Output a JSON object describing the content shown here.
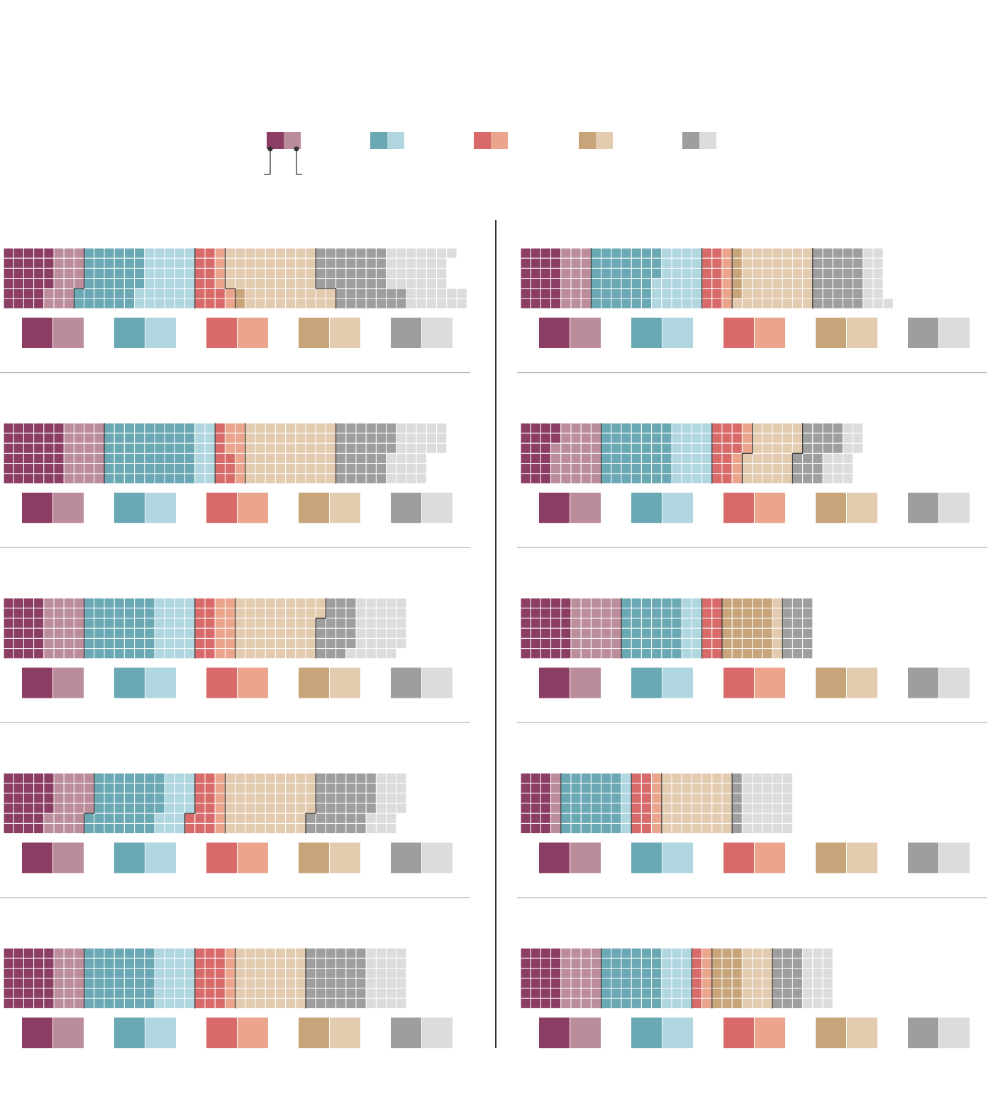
{
  "colors": {
    "cat1": [
      "#8b3d63",
      "#bb8c9a"
    ],
    "cat2": [
      "#6aa8b4",
      "#b0d6df"
    ],
    "cat3": [
      "#d86a6a",
      "#eaa58c"
    ],
    "cat4": [
      "#c8a47a",
      "#e3cbb0"
    ],
    "cat5": [
      "#9e9e9e",
      "#dcdcdc"
    ],
    "grid_line": "#ffffff",
    "divider": "#b4b4b4",
    "separator": "#333333"
  },
  "chart_data": {
    "type": "waffle",
    "rows_per_panel": 6,
    "categories": [
      "cat1",
      "cat2",
      "cat3",
      "cat4",
      "cat5"
    ],
    "panels": [
      {
        "column": "left",
        "row": 1,
        "rows": [
          [
            5,
            3,
            6,
            5,
            2,
            1,
            0,
            9,
            7,
            7
          ],
          [
            5,
            3,
            6,
            5,
            2,
            1,
            0,
            9,
            7,
            6
          ],
          [
            5,
            3,
            6,
            5,
            2,
            1,
            0,
            9,
            7,
            6
          ],
          [
            5,
            3,
            6,
            5,
            2,
            1,
            0,
            9,
            7,
            6
          ],
          [
            4,
            3,
            6,
            6,
            3,
            1,
            1,
            9,
            7,
            6
          ],
          [
            4,
            3,
            6,
            6,
            3,
            1,
            1,
            9,
            7,
            6
          ]
        ]
      },
      {
        "column": "right",
        "row": 1,
        "rows": [
          [
            4,
            3,
            7,
            4,
            2,
            1,
            1,
            7,
            5,
            2
          ],
          [
            4,
            3,
            7,
            4,
            2,
            1,
            1,
            7,
            5,
            2
          ],
          [
            4,
            3,
            7,
            4,
            2,
            1,
            1,
            7,
            5,
            2
          ],
          [
            4,
            3,
            6,
            5,
            2,
            1,
            1,
            7,
            5,
            2
          ],
          [
            4,
            3,
            6,
            5,
            2,
            1,
            1,
            7,
            5,
            2
          ],
          [
            4,
            3,
            6,
            5,
            2,
            1,
            0,
            8,
            5,
            3
          ]
        ]
      },
      {
        "column": "left",
        "row": 2,
        "rows": [
          [
            6,
            4,
            9,
            2,
            1,
            2,
            0,
            9,
            6,
            5
          ],
          [
            6,
            4,
            9,
            2,
            1,
            2,
            0,
            9,
            6,
            5
          ],
          [
            6,
            4,
            9,
            2,
            1,
            2,
            0,
            9,
            6,
            5
          ],
          [
            6,
            4,
            9,
            2,
            2,
            1,
            0,
            9,
            5,
            4
          ],
          [
            6,
            4,
            9,
            2,
            2,
            1,
            0,
            9,
            5,
            4
          ],
          [
            6,
            4,
            9,
            2,
            2,
            1,
            0,
            9,
            5,
            4
          ]
        ]
      },
      {
        "column": "right",
        "row": 2,
        "rows": [
          [
            4,
            4,
            7,
            4,
            3,
            1,
            0,
            5,
            4,
            2
          ],
          [
            4,
            4,
            7,
            4,
            3,
            1,
            0,
            5,
            4,
            2
          ],
          [
            3,
            5,
            7,
            4,
            3,
            1,
            0,
            5,
            4,
            2
          ],
          [
            3,
            5,
            7,
            4,
            2,
            1,
            0,
            5,
            3,
            3
          ],
          [
            3,
            5,
            7,
            4,
            2,
            1,
            0,
            5,
            3,
            3
          ],
          [
            3,
            5,
            7,
            4,
            2,
            1,
            0,
            5,
            3,
            3
          ]
        ]
      },
      {
        "column": "left",
        "row": 3,
        "rows": [
          [
            4,
            4,
            7,
            4,
            2,
            2,
            0,
            9,
            3,
            5
          ],
          [
            4,
            4,
            7,
            4,
            2,
            2,
            0,
            9,
            3,
            5
          ],
          [
            4,
            4,
            7,
            4,
            2,
            2,
            0,
            8,
            4,
            5
          ],
          [
            4,
            4,
            7,
            4,
            2,
            2,
            0,
            8,
            4,
            5
          ],
          [
            4,
            4,
            7,
            4,
            2,
            2,
            0,
            8,
            4,
            5
          ],
          [
            4,
            4,
            7,
            4,
            2,
            2,
            0,
            8,
            3,
            5
          ]
        ]
      },
      {
        "column": "right",
        "row": 3,
        "rows": [
          [
            5,
            5,
            6,
            2,
            2,
            0,
            5,
            1,
            3,
            0
          ],
          [
            5,
            5,
            6,
            2,
            2,
            0,
            5,
            1,
            3,
            0
          ],
          [
            5,
            5,
            6,
            2,
            2,
            0,
            5,
            1,
            3,
            0
          ],
          [
            5,
            5,
            6,
            2,
            2,
            0,
            5,
            1,
            3,
            0
          ],
          [
            5,
            5,
            6,
            2,
            2,
            0,
            5,
            1,
            3,
            0
          ],
          [
            5,
            5,
            6,
            2,
            2,
            0,
            5,
            1,
            3,
            0
          ]
        ]
      },
      {
        "column": "left",
        "row": 4,
        "rows": [
          [
            5,
            4,
            7,
            3,
            2,
            1,
            0,
            9,
            6,
            3
          ],
          [
            5,
            4,
            7,
            3,
            2,
            1,
            0,
            9,
            6,
            3
          ],
          [
            5,
            4,
            7,
            3,
            2,
            1,
            0,
            9,
            6,
            3
          ],
          [
            5,
            4,
            7,
            3,
            2,
            1,
            0,
            9,
            6,
            3
          ],
          [
            4,
            4,
            7,
            3,
            3,
            1,
            0,
            8,
            6,
            3
          ],
          [
            4,
            4,
            7,
            3,
            3,
            1,
            0,
            8,
            6,
            3
          ]
        ]
      },
      {
        "column": "right",
        "row": 4,
        "rows": [
          [
            3,
            1,
            6,
            1,
            2,
            1,
            0,
            7,
            1,
            5
          ],
          [
            3,
            1,
            6,
            1,
            2,
            1,
            0,
            7,
            1,
            5
          ],
          [
            3,
            1,
            6,
            1,
            2,
            1,
            0,
            7,
            1,
            5
          ],
          [
            3,
            1,
            6,
            1,
            2,
            1,
            0,
            7,
            1,
            5
          ],
          [
            3,
            1,
            6,
            1,
            2,
            1,
            0,
            7,
            1,
            5
          ],
          [
            3,
            1,
            6,
            1,
            2,
            1,
            0,
            7,
            1,
            5
          ]
        ]
      },
      {
        "column": "left",
        "row": 5,
        "rows": [
          [
            5,
            3,
            7,
            4,
            3,
            1,
            0,
            7,
            6,
            4
          ],
          [
            5,
            3,
            7,
            4,
            3,
            1,
            0,
            7,
            6,
            4
          ],
          [
            5,
            3,
            7,
            4,
            3,
            1,
            0,
            7,
            6,
            4
          ],
          [
            5,
            3,
            7,
            4,
            3,
            1,
            0,
            7,
            6,
            4
          ],
          [
            5,
            3,
            7,
            4,
            3,
            1,
            0,
            7,
            6,
            4
          ],
          [
            5,
            3,
            7,
            4,
            3,
            1,
            0,
            7,
            6,
            4
          ]
        ]
      },
      {
        "column": "right",
        "row": 5,
        "rows": [
          [
            4,
            4,
            6,
            3,
            1,
            1,
            3,
            3,
            3,
            3
          ],
          [
            4,
            4,
            6,
            3,
            1,
            1,
            3,
            3,
            3,
            3
          ],
          [
            4,
            4,
            6,
            3,
            1,
            1,
            3,
            3,
            3,
            3
          ],
          [
            4,
            4,
            6,
            3,
            1,
            1,
            3,
            3,
            3,
            3
          ],
          [
            4,
            4,
            6,
            3,
            1,
            1,
            3,
            3,
            3,
            3
          ],
          [
            4,
            4,
            6,
            3,
            1,
            1,
            3,
            3,
            3,
            3
          ]
        ]
      }
    ]
  }
}
